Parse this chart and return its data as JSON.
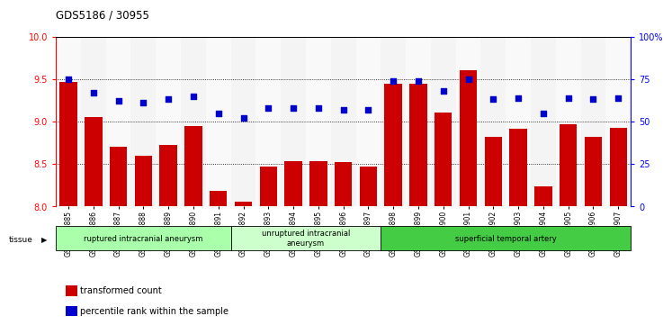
{
  "title": "GDS5186 / 30955",
  "samples": [
    "GSM1306885",
    "GSM1306886",
    "GSM1306887",
    "GSM1306888",
    "GSM1306889",
    "GSM1306890",
    "GSM1306891",
    "GSM1306892",
    "GSM1306893",
    "GSM1306894",
    "GSM1306895",
    "GSM1306896",
    "GSM1306897",
    "GSM1306898",
    "GSM1306899",
    "GSM1306900",
    "GSM1306901",
    "GSM1306902",
    "GSM1306903",
    "GSM1306904",
    "GSM1306905",
    "GSM1306906",
    "GSM1306907"
  ],
  "bar_values": [
    9.47,
    9.05,
    8.7,
    8.6,
    8.72,
    8.95,
    8.18,
    8.06,
    8.47,
    8.53,
    8.53,
    8.52,
    8.47,
    9.45,
    9.45,
    9.11,
    9.6,
    8.82,
    8.92,
    8.24,
    8.97,
    8.82,
    8.93
  ],
  "dot_values": [
    75,
    67,
    62,
    61,
    63,
    65,
    55,
    52,
    58,
    58,
    58,
    57,
    57,
    74,
    74,
    68,
    75,
    63,
    64,
    55,
    64,
    63,
    64
  ],
  "groups": [
    {
      "label": "ruptured intracranial aneurysm",
      "start": 0,
      "end": 7,
      "color": "#aaffaa"
    },
    {
      "label": "unruptured intracranial\naneurysm",
      "start": 7,
      "end": 13,
      "color": "#ccffcc"
    },
    {
      "label": "superficial temporal artery",
      "start": 13,
      "end": 23,
      "color": "#44cc44"
    }
  ],
  "bar_color": "#cc0000",
  "dot_color": "#0000cc",
  "ylim_left": [
    8.0,
    10.0
  ],
  "ylim_right": [
    0,
    100
  ],
  "yticks_left": [
    8.0,
    8.5,
    9.0,
    9.5,
    10.0
  ],
  "yticks_right": [
    0,
    25,
    50,
    75,
    100
  ],
  "ytick_right_labels": [
    "0",
    "25",
    "50",
    "75",
    "100%"
  ],
  "grid_lines": [
    8.5,
    9.0,
    9.5
  ]
}
